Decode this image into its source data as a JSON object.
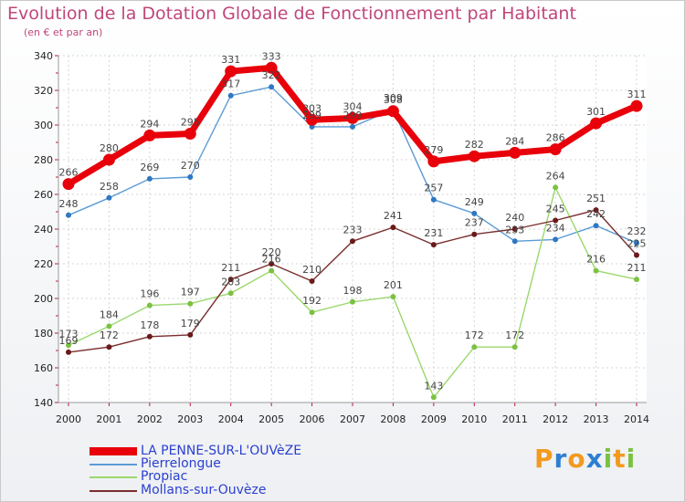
{
  "title": "Evolution de la Dotation Globale de Fonctionnement par Habitant",
  "subtitle": "(en € et par an)",
  "logo": {
    "text": "Proxiti",
    "letters": [
      "P",
      "r",
      "o",
      "x",
      "i",
      "t",
      "i"
    ],
    "colors": [
      "#f39a1e",
      "#2d7fd0",
      "#f39a1e",
      "#2d7fd0",
      "#7cc142",
      "#f39a1e",
      "#7cc142"
    ]
  },
  "chart_data": {
    "type": "line",
    "title": "Evolution de la Dotation Globale de Fonctionnement par Habitant",
    "subtitle": "(en € et par an)",
    "xlabel": "",
    "ylabel": "",
    "x": [
      "2000",
      "2001",
      "2002",
      "2003",
      "2004",
      "2005",
      "2006",
      "2007",
      "2008",
      "2009",
      "2010",
      "2011",
      "2012",
      "2013",
      "2014"
    ],
    "ylim": [
      140,
      340
    ],
    "yticks": [
      140,
      160,
      180,
      200,
      220,
      240,
      260,
      280,
      300,
      320,
      340
    ],
    "grid": true,
    "legend_position": "bottom-left",
    "series": [
      {
        "name": "LA PENNE-SUR-L'OUVèZE",
        "color": "#e8000a",
        "marker_color": "#e8000a",
        "emphasis": true,
        "values": [
          266,
          280,
          294,
          295,
          331,
          333,
          303,
          304,
          308,
          279,
          282,
          284,
          286,
          301,
          311
        ],
        "labels": [
          "266",
          "280",
          "294",
          "295",
          "331",
          "333",
          "303",
          "304",
          "308",
          "279",
          "282",
          "284",
          "286",
          "301",
          "311"
        ]
      },
      {
        "name": "Pierrelongue",
        "color": "#5b9bd5",
        "marker_color": "#2f77c2",
        "emphasis": false,
        "values": [
          248,
          258,
          269,
          270,
          317,
          322,
          299,
          299,
          309,
          257,
          249,
          233,
          234,
          242,
          232
        ],
        "labels": [
          "248",
          "258",
          "269",
          "270",
          "317",
          "322",
          "299",
          "299",
          "309",
          "257",
          "249",
          "233",
          "234",
          "242",
          "232"
        ]
      },
      {
        "name": "Propiac",
        "color": "#9ad86c",
        "marker_color": "#7cc142",
        "emphasis": false,
        "values": [
          173,
          184,
          196,
          197,
          203,
          216,
          192,
          198,
          201,
          143,
          172,
          172,
          264,
          216,
          211
        ],
        "labels": [
          "173",
          "184",
          "196",
          "197",
          "203",
          "216",
          "192",
          "198",
          "201",
          "143",
          "172",
          "172",
          "264",
          "216",
          "211"
        ]
      },
      {
        "name": "Mollans-sur-Ouvèze",
        "color": "#7a2e2e",
        "marker_color": "#6a1a1a",
        "emphasis": false,
        "values": [
          169,
          172,
          178,
          179,
          211,
          220,
          210,
          233,
          241,
          231,
          237,
          240,
          245,
          251,
          225
        ],
        "labels": [
          "169",
          "172",
          "178",
          "179",
          "211",
          "220",
          "210",
          "233",
          "241",
          "231",
          "237",
          "240",
          "245",
          "251",
          "225"
        ]
      }
    ]
  }
}
